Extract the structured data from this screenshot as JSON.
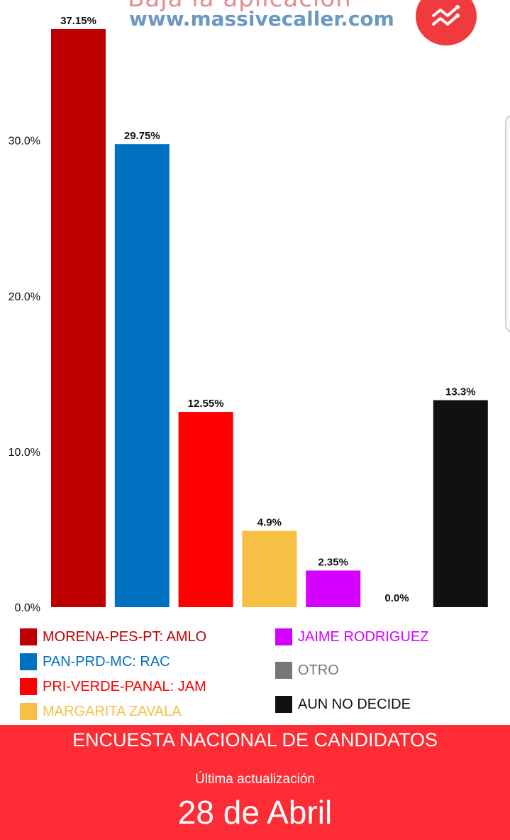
{
  "header": {
    "overlay_text": "Baja la aplicación",
    "site_url": "www.massivecaller.com",
    "trend_icon": "trend-icon",
    "brand_color": "#f03a3d"
  },
  "chart_data": {
    "type": "bar",
    "categories": [
      "MORENA-PES-PT: AMLO",
      "PAN-PRD-MC: RAC",
      "PRI-VERDE-PANAL: JAM",
      "MARGARITA ZAVALA",
      "JAIME RODRIGUEZ",
      "OTRO",
      "AUN NO DECIDE"
    ],
    "values": [
      37.15,
      29.75,
      12.55,
      4.9,
      2.35,
      0.0,
      13.3
    ],
    "data_labels": [
      "37.15%",
      "29.75%",
      "12.55%",
      "4.9%",
      "2.35%",
      "0.0%",
      "13.3%"
    ],
    "colors": [
      "#bf0000",
      "#0070c0",
      "#fe0000",
      "#f5c044",
      "#d500ff",
      "#7a7676",
      "#111111"
    ],
    "label_colors": [
      "#bf0000",
      "#0070c0",
      "#fe0000",
      "#f5c044",
      "#d500ff",
      "#7a7676",
      "#111111"
    ],
    "ylim": [
      0,
      37.15
    ],
    "yticks": [
      0,
      10,
      20,
      30
    ],
    "ytick_labels": [
      "0.0%",
      "10.0%",
      "20.0%",
      "30.0%"
    ],
    "grid": false,
    "legend_position": "bottom"
  },
  "footer": {
    "title": "ENCUESTA NACIONAL DE CANDIDATOS",
    "subtitle": "Última actualización",
    "date": "28 de Abril"
  }
}
